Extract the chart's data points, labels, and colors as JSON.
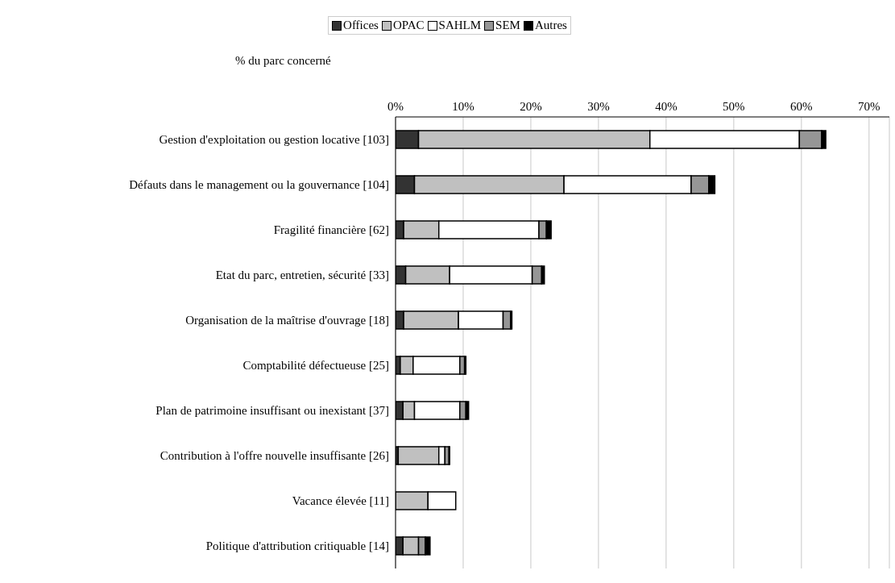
{
  "chart_data": {
    "type": "bar",
    "orientation": "horizontal",
    "stacked": true,
    "xlabel": "% du parc concerné",
    "categories": [
      "Gestion d'exploitation ou gestion locative [103]",
      "Défauts dans le management ou la gouvernance [104]",
      "Fragilité financière [62]",
      "Etat du parc, entretien, sécurité [33]",
      "Organisation de la maîtrise d'ouvrage [18]",
      "Comptabilité défectueuse [25]",
      "Plan de patrimoine insuffisant ou inexistant [37]",
      "Contribution à l'offre nouvelle insuffisante [26]",
      "Vacance élevée [11]",
      "Politique d'attribution critiquable [14]"
    ],
    "series": [
      {
        "name": "Offices",
        "color": "#333333",
        "values": [
          3.4,
          2.8,
          1.2,
          1.5,
          1.2,
          0.7,
          1.1,
          0.4,
          0,
          1.1
        ]
      },
      {
        "name": "OPAC",
        "color": "#c0c0c0",
        "values": [
          34.2,
          22.1,
          5.2,
          6.5,
          8.1,
          1.9,
          1.7,
          6.0,
          4.8,
          2.3
        ]
      },
      {
        "name": "SAHLM",
        "color": "#ffffff",
        "values": [
          22.1,
          18.8,
          14.8,
          12.2,
          6.6,
          6.9,
          6.7,
          0.9,
          4.1,
          0
        ]
      },
      {
        "name": "SEM",
        "color": "#969696",
        "values": [
          3.3,
          2.6,
          1.1,
          1.4,
          1.1,
          0.7,
          0.9,
          0.6,
          0,
          1.0
        ]
      },
      {
        "name": "Autres",
        "color": "#000000",
        "values": [
          0.6,
          0.9,
          0.7,
          0.4,
          0.2,
          0.2,
          0.4,
          0.1,
          0,
          0.7
        ]
      }
    ],
    "xlim": [
      0,
      73
    ],
    "xticks": [
      {
        "value": 0,
        "label": "0%"
      },
      {
        "value": 10,
        "label": "10%"
      },
      {
        "value": 20,
        "label": "20%"
      },
      {
        "value": 30,
        "label": "30%"
      },
      {
        "value": 40,
        "label": "40%"
      },
      {
        "value": 50,
        "label": "50%"
      },
      {
        "value": 60,
        "label": "60%"
      },
      {
        "value": 70,
        "label": "70%"
      }
    ],
    "grid": "x",
    "legend": "top"
  }
}
